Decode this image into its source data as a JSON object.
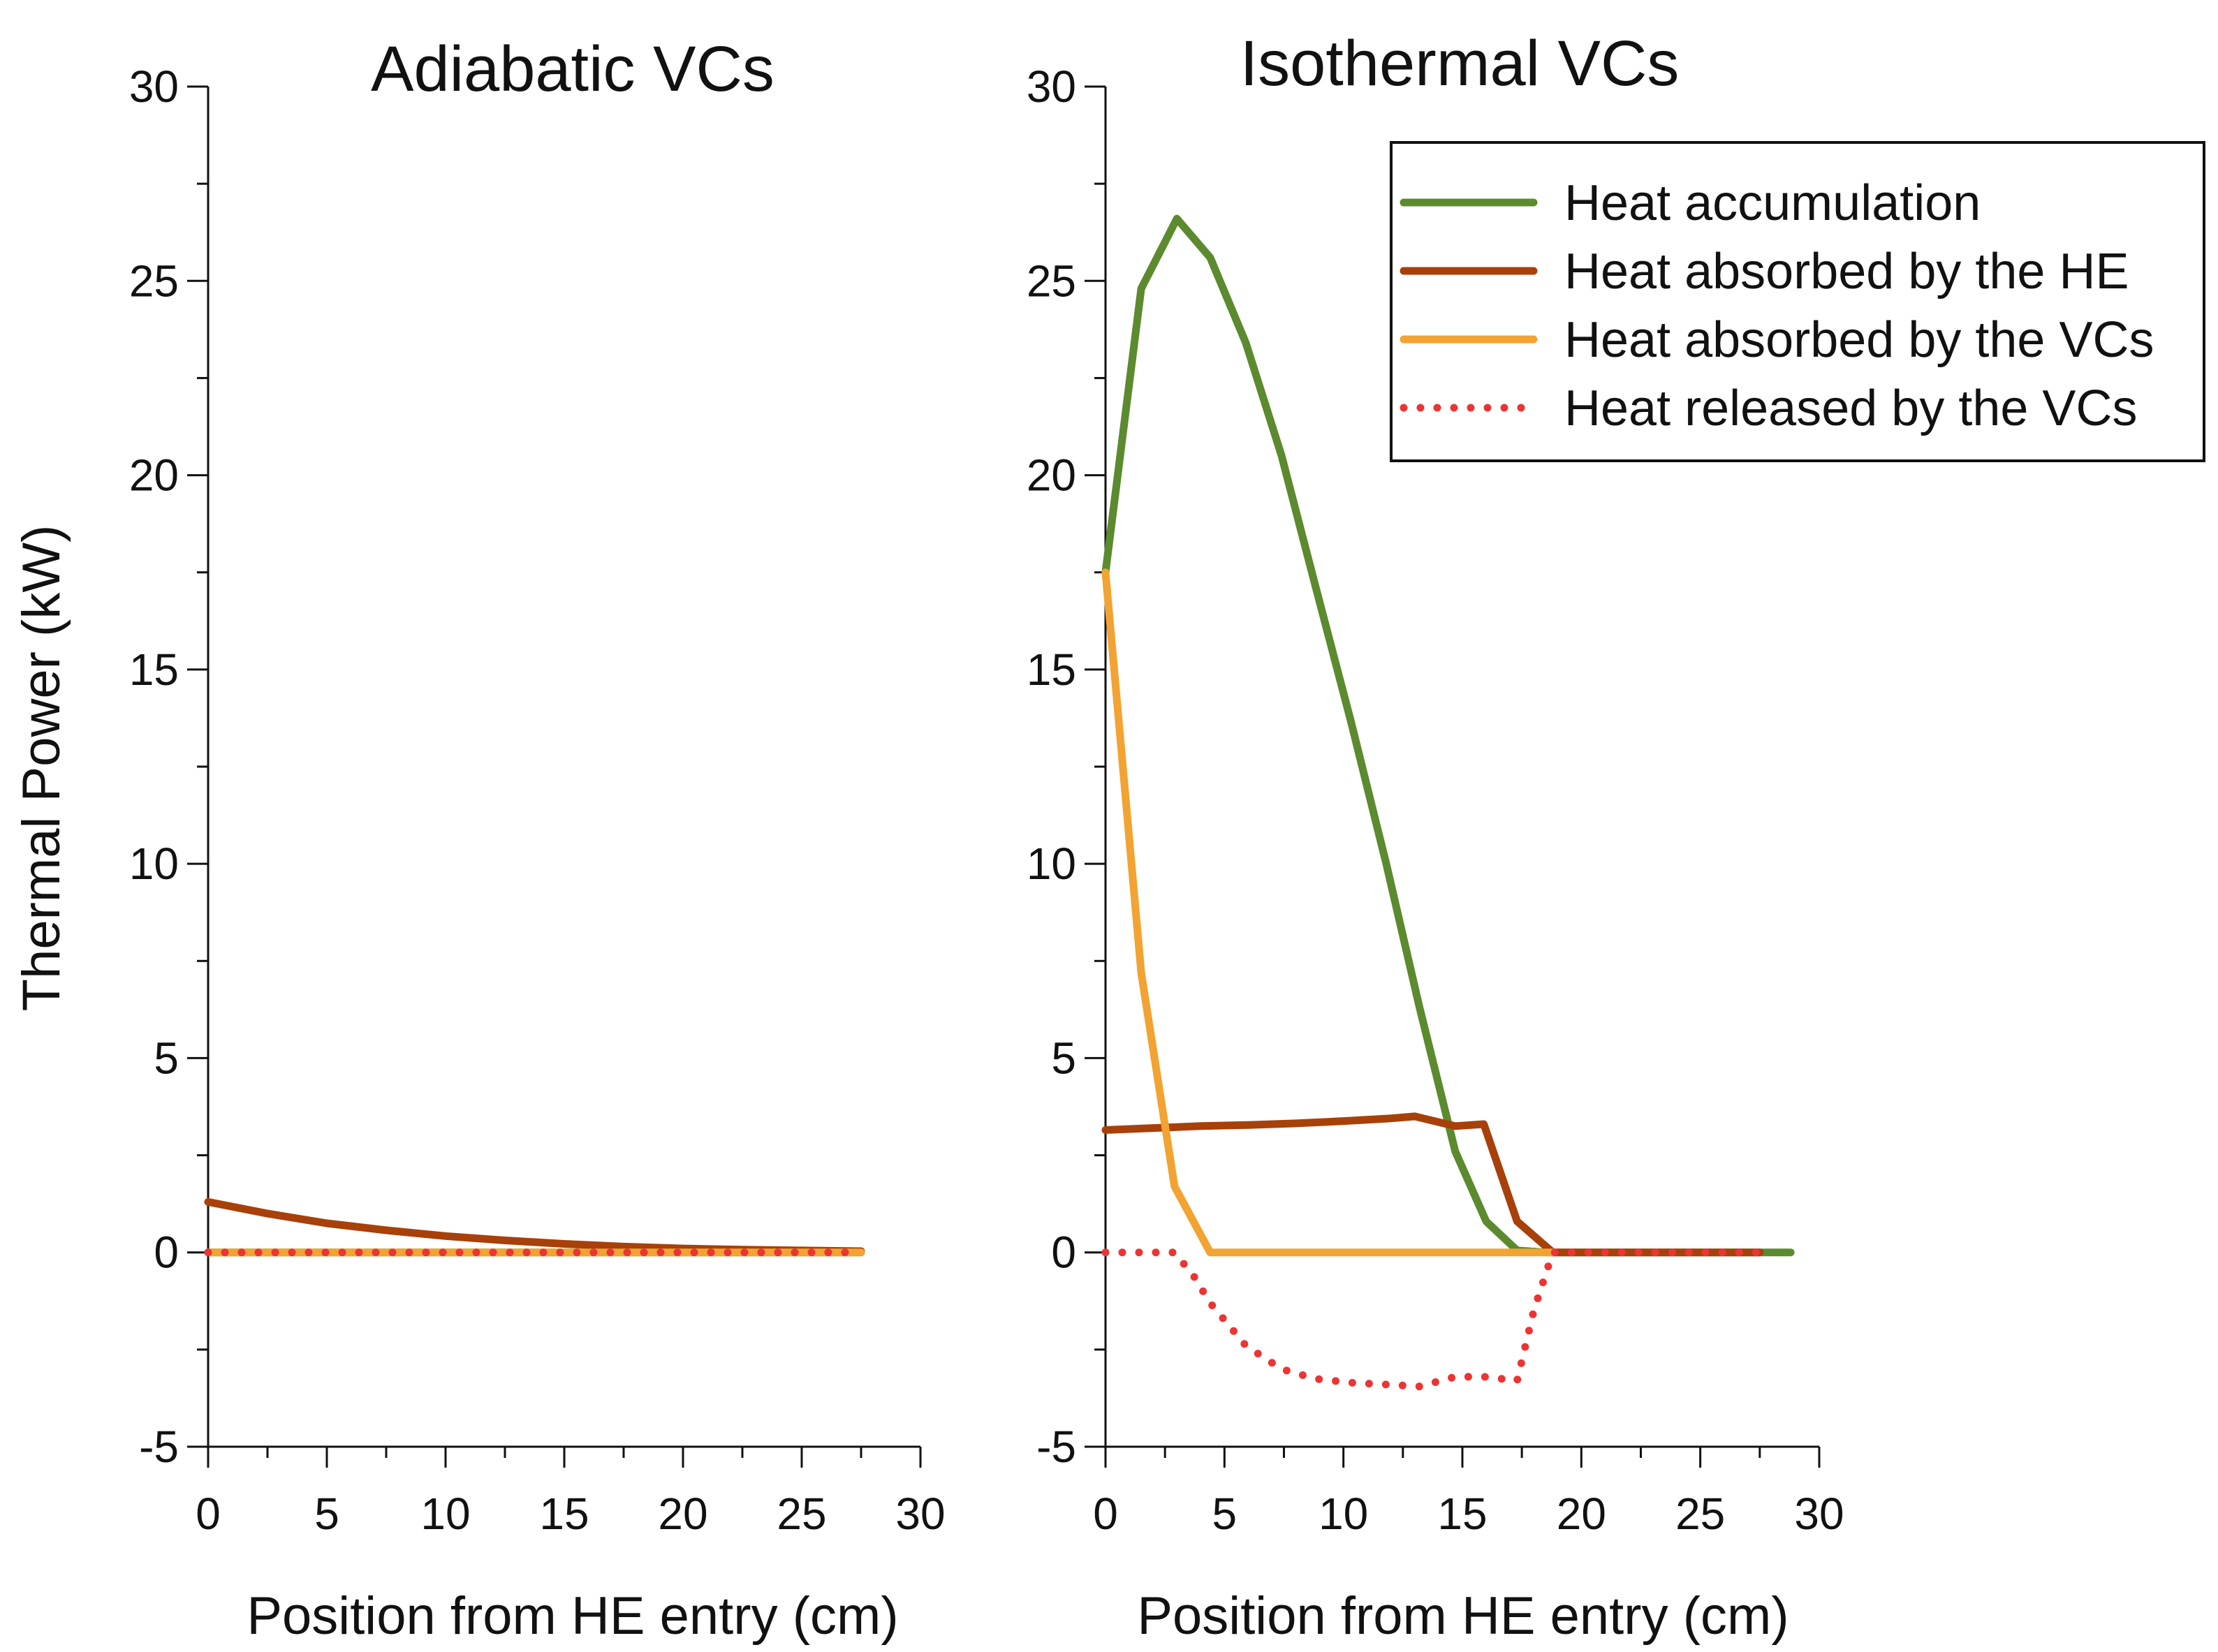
{
  "ylabel": "Thermal Power (kW)",
  "colors": {
    "heat_accumulation": "#5c8a2e",
    "heat_absorbed_he": "#a8400a",
    "heat_absorbed_vcs": "#f2a332",
    "heat_released_vcs": "#ee3333"
  },
  "legend": {
    "entries": [
      {
        "label": "Heat accumulation",
        "key": "heat_accumulation",
        "style": "solid"
      },
      {
        "label": "Heat absorbed by the HE",
        "key": "heat_absorbed_he",
        "style": "solid"
      },
      {
        "label": "Heat absorbed by the VCs",
        "key": "heat_absorbed_vcs",
        "style": "solid"
      },
      {
        "label": "Heat released by the VCs",
        "key": "heat_released_vcs",
        "style": "dotted"
      }
    ]
  },
  "chart_data": [
    {
      "type": "line",
      "title": "Adiabatic VCs",
      "xlabel": "Position from HE entry (cm)",
      "ylabel": "Thermal Power (kW)",
      "xlim": [
        0,
        30
      ],
      "ylim": [
        -5,
        30
      ],
      "xticks": [
        "0",
        "5",
        "10",
        "15",
        "20",
        "25",
        "30"
      ],
      "yticks": [
        "-5",
        "0",
        "5",
        "10",
        "15",
        "20",
        "25",
        "30"
      ],
      "series": [
        {
          "name": "Heat accumulation",
          "key": "heat_accumulation",
          "style": "solid",
          "x": [
            0,
            27.5
          ],
          "y": [
            0,
            0
          ]
        },
        {
          "name": "Heat absorbed by the HE",
          "key": "heat_absorbed_he",
          "style": "solid",
          "x": [
            0,
            2.5,
            5,
            7.5,
            10,
            12.5,
            15,
            17.5,
            20,
            22.5,
            25,
            27.5
          ],
          "y": [
            1.3,
            1.0,
            0.75,
            0.57,
            0.42,
            0.31,
            0.22,
            0.15,
            0.1,
            0.07,
            0.05,
            0.03
          ]
        },
        {
          "name": "Heat absorbed by the VCs",
          "key": "heat_absorbed_vcs",
          "style": "solid",
          "x": [
            0,
            27.5
          ],
          "y": [
            0,
            0
          ]
        },
        {
          "name": "Heat released by the VCs",
          "key": "heat_released_vcs",
          "style": "dotted",
          "x": [
            0,
            27.5
          ],
          "y": [
            0,
            0
          ]
        }
      ]
    },
    {
      "type": "line",
      "title": "Isothermal VCs",
      "xlabel": "Position from HE entry (cm)",
      "ylabel": "",
      "xlim": [
        0,
        30
      ],
      "ylim": [
        -5,
        30
      ],
      "xticks": [
        "0",
        "5",
        "10",
        "15",
        "20",
        "25",
        "30"
      ],
      "yticks": [
        "-5",
        "0",
        "5",
        "10",
        "15",
        "20",
        "25",
        "30"
      ],
      "series": [
        {
          "name": "Heat accumulation",
          "key": "heat_accumulation",
          "style": "solid",
          "x": [
            0,
            1.5,
            3,
            4.4,
            5.9,
            7.4,
            8.8,
            10.3,
            11.8,
            13.2,
            14.7,
            16.0,
            17.3,
            18.5,
            20,
            22,
            24,
            26,
            28.8
          ],
          "y": [
            17.5,
            24.8,
            26.6,
            25.6,
            23.4,
            20.5,
            17.2,
            13.7,
            10.0,
            6.3,
            2.6,
            0.8,
            0.05,
            0,
            0,
            0,
            0,
            0,
            0
          ]
        },
        {
          "name": "Heat absorbed by the HE",
          "key": "heat_absorbed_he",
          "style": "solid",
          "x": [
            0,
            2,
            4,
            6,
            8,
            10,
            12,
            13,
            14.7,
            15.9,
            17.3,
            18.8,
            20,
            25,
            27.5
          ],
          "y": [
            3.15,
            3.2,
            3.25,
            3.28,
            3.32,
            3.38,
            3.45,
            3.5,
            3.25,
            3.3,
            0.8,
            0,
            0,
            0,
            0
          ]
        },
        {
          "name": "Heat absorbed by the VCs",
          "key": "heat_absorbed_vcs",
          "style": "solid",
          "x": [
            0,
            1.5,
            2.9,
            4.4,
            6,
            10,
            15,
            18.8
          ],
          "y": [
            17.5,
            7.2,
            1.7,
            0,
            0,
            0,
            0,
            0
          ]
        },
        {
          "name": "Heat released by the VCs",
          "key": "heat_released_vcs",
          "style": "dotted",
          "x": [
            0,
            1.5,
            2.9,
            3.7,
            4.4,
            5.9,
            7.4,
            8.8,
            10.3,
            11.8,
            13.2,
            14.7,
            15.9,
            17.3,
            18.0,
            18.8,
            20,
            22,
            25,
            27.5
          ],
          "y": [
            0,
            0,
            0,
            -0.6,
            -1.3,
            -2.4,
            -3.0,
            -3.25,
            -3.35,
            -3.4,
            -3.45,
            -3.2,
            -3.2,
            -3.3,
            -1.5,
            0,
            0,
            0,
            0,
            0
          ]
        }
      ]
    }
  ]
}
